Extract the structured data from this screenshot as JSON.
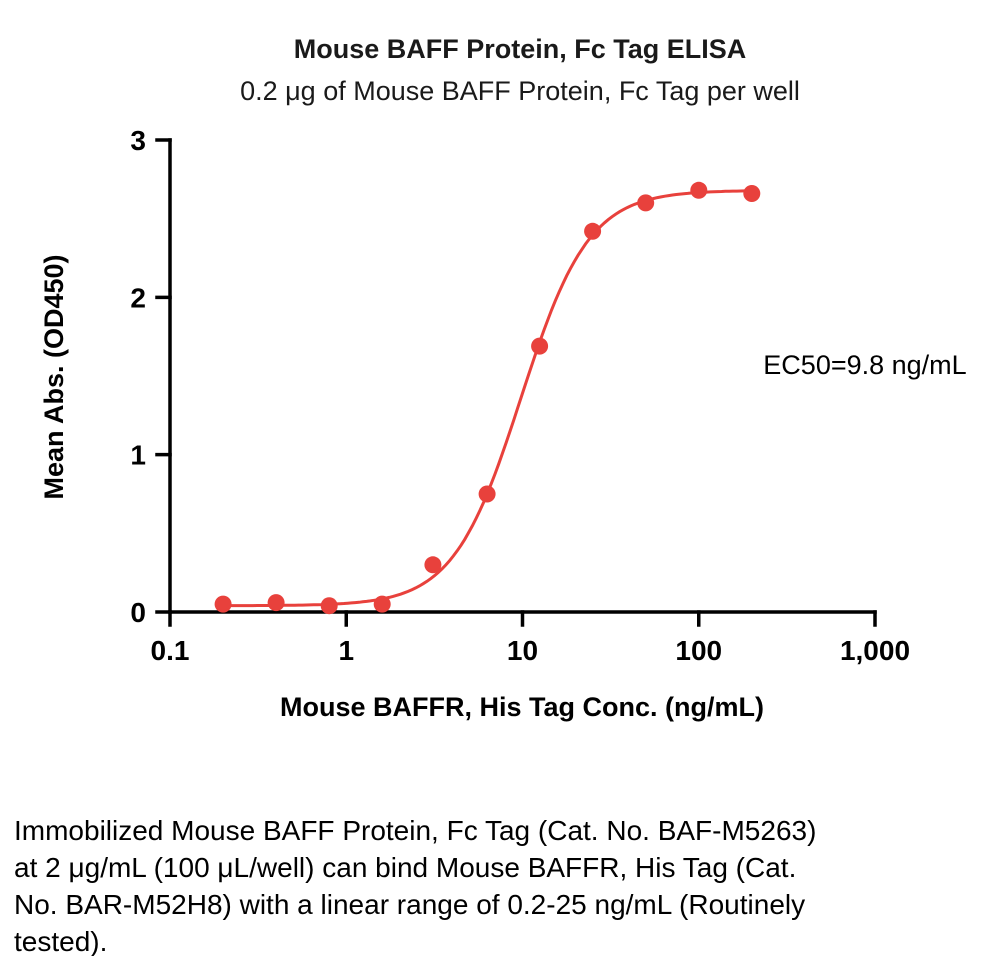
{
  "chart_data": {
    "type": "scatter",
    "title": "Mouse BAFF Protein, Fc Tag ELISA",
    "subtitle": "0.2 μg of Mouse BAFF Protein, Fc Tag per well",
    "xlabel": "Mouse BAFFR, His Tag Conc. (ng/mL)",
    "ylabel": "Mean Abs. (OD450)",
    "annotation": "EC50=9.8 ng/mL",
    "x_scale": "log",
    "xlim": [
      0.1,
      1000
    ],
    "ylim": [
      0,
      3
    ],
    "x_ticks": [
      0.1,
      1,
      10,
      100,
      1000
    ],
    "x_tick_labels": [
      "0.1",
      "1",
      "10",
      "100",
      "1,000"
    ],
    "y_ticks": [
      0,
      1,
      2,
      3
    ],
    "y_tick_labels": [
      "0",
      "1",
      "2",
      "3"
    ],
    "grid": false,
    "legend": "none",
    "series_color": "#e8413c",
    "axis_color": "#000000",
    "points": {
      "x": [
        0.2,
        0.4,
        0.8,
        1.6,
        3.1,
        6.3,
        12.5,
        25,
        50,
        100,
        200
      ],
      "y": [
        0.05,
        0.06,
        0.04,
        0.05,
        0.3,
        0.75,
        1.69,
        2.42,
        2.6,
        2.68,
        2.66
      ]
    },
    "fit": {
      "model": "4PL",
      "bottom": 0.04,
      "top": 2.68,
      "ec50": 9.8,
      "hill": 2.26
    }
  },
  "caption_lines": [
    "Immobilized Mouse BAFF Protein, Fc Tag (Cat. No. BAF-M5263)",
    "at 2 μg/mL (100 μL/well) can bind Mouse BAFFR, His Tag (Cat.",
    "No. BAR-M52H8) with a linear range of 0.2-25 ng/mL (Routinely",
    "tested)."
  ]
}
